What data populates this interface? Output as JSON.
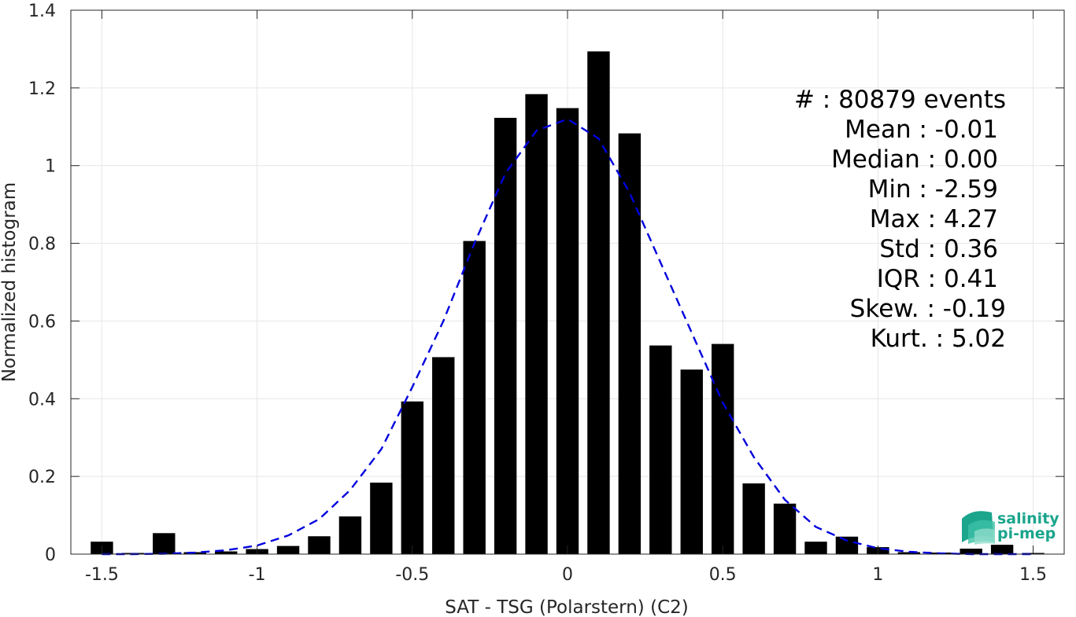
{
  "chart_data": {
    "type": "bar",
    "xlabel": "SAT - TSG (Polarstern) (C2)",
    "ylabel": "Normalized histogram",
    "xlim": [
      -1.6,
      1.6
    ],
    "ylim": [
      0,
      1.4
    ],
    "xticks": [
      -1.5,
      -1,
      -0.5,
      0,
      0.5,
      1,
      1.5
    ],
    "xtick_labels": [
      "-1.5",
      "-1",
      "-0.5",
      "0",
      "0.5",
      "1",
      "1.5"
    ],
    "yticks": [
      0,
      0.2,
      0.4,
      0.6,
      0.8,
      1,
      1.2,
      1.4
    ],
    "ytick_labels": [
      "0",
      "0.2",
      "0.4",
      "0.6",
      "0.8",
      "1",
      "1.2",
      "1.4"
    ],
    "grid": true,
    "bar_color": "#000000",
    "fit_color": "#0000dd",
    "bars": {
      "x": [
        -1.5,
        -1.4,
        -1.3,
        -1.2,
        -1.1,
        -1.0,
        -0.9,
        -0.8,
        -0.7,
        -0.6,
        -0.5,
        -0.4,
        -0.3,
        -0.2,
        -0.1,
        0.0,
        0.1,
        0.2,
        0.3,
        0.4,
        0.5,
        0.6,
        0.7,
        0.8,
        0.9,
        1.0,
        1.1,
        1.2,
        1.3,
        1.4,
        1.5
      ],
      "values": [
        0.032,
        0.003,
        0.054,
        0.005,
        0.007,
        0.013,
        0.021,
        0.046,
        0.097,
        0.184,
        0.393,
        0.507,
        0.806,
        1.123,
        1.184,
        1.148,
        1.294,
        1.083,
        0.537,
        0.475,
        0.541,
        0.182,
        0.13,
        0.032,
        0.045,
        0.018,
        0.005,
        0.004,
        0.014,
        0.024,
        0.003
      ]
    },
    "fit": {
      "name": "gaussian fit",
      "x": [
        -1.5,
        -1.4,
        -1.3,
        -1.2,
        -1.1,
        -1.0,
        -0.9,
        -0.8,
        -0.7,
        -0.6,
        -0.5,
        -0.4,
        -0.3,
        -0.2,
        -0.1,
        0.0,
        0.1,
        0.2,
        0.3,
        0.4,
        0.5,
        0.6,
        0.7,
        0.8,
        0.9,
        1.0,
        1.1,
        1.2,
        1.3,
        1.4,
        1.5
      ],
      "y": [
        0.0,
        0.0,
        0.001,
        0.004,
        0.01,
        0.022,
        0.048,
        0.09,
        0.165,
        0.27,
        0.43,
        0.6,
        0.8,
        0.98,
        1.09,
        1.12,
        1.07,
        0.93,
        0.75,
        0.57,
        0.39,
        0.25,
        0.14,
        0.07,
        0.035,
        0.015,
        0.006,
        0.002,
        0.0,
        0.0,
        0.0
      ]
    },
    "annotations": [
      "#  : 80879 events",
      "Mean : -0.01",
      "Median : 0.00",
      "Min : -2.59",
      "Max : 4.27",
      "Std : 0.36",
      "IQR : 0.41",
      "Skew. : -0.19",
      "Kurt. : 5.02"
    ]
  },
  "logo": {
    "line1": "salinity",
    "line2": "pi-mep",
    "color": "#1aa58c"
  }
}
